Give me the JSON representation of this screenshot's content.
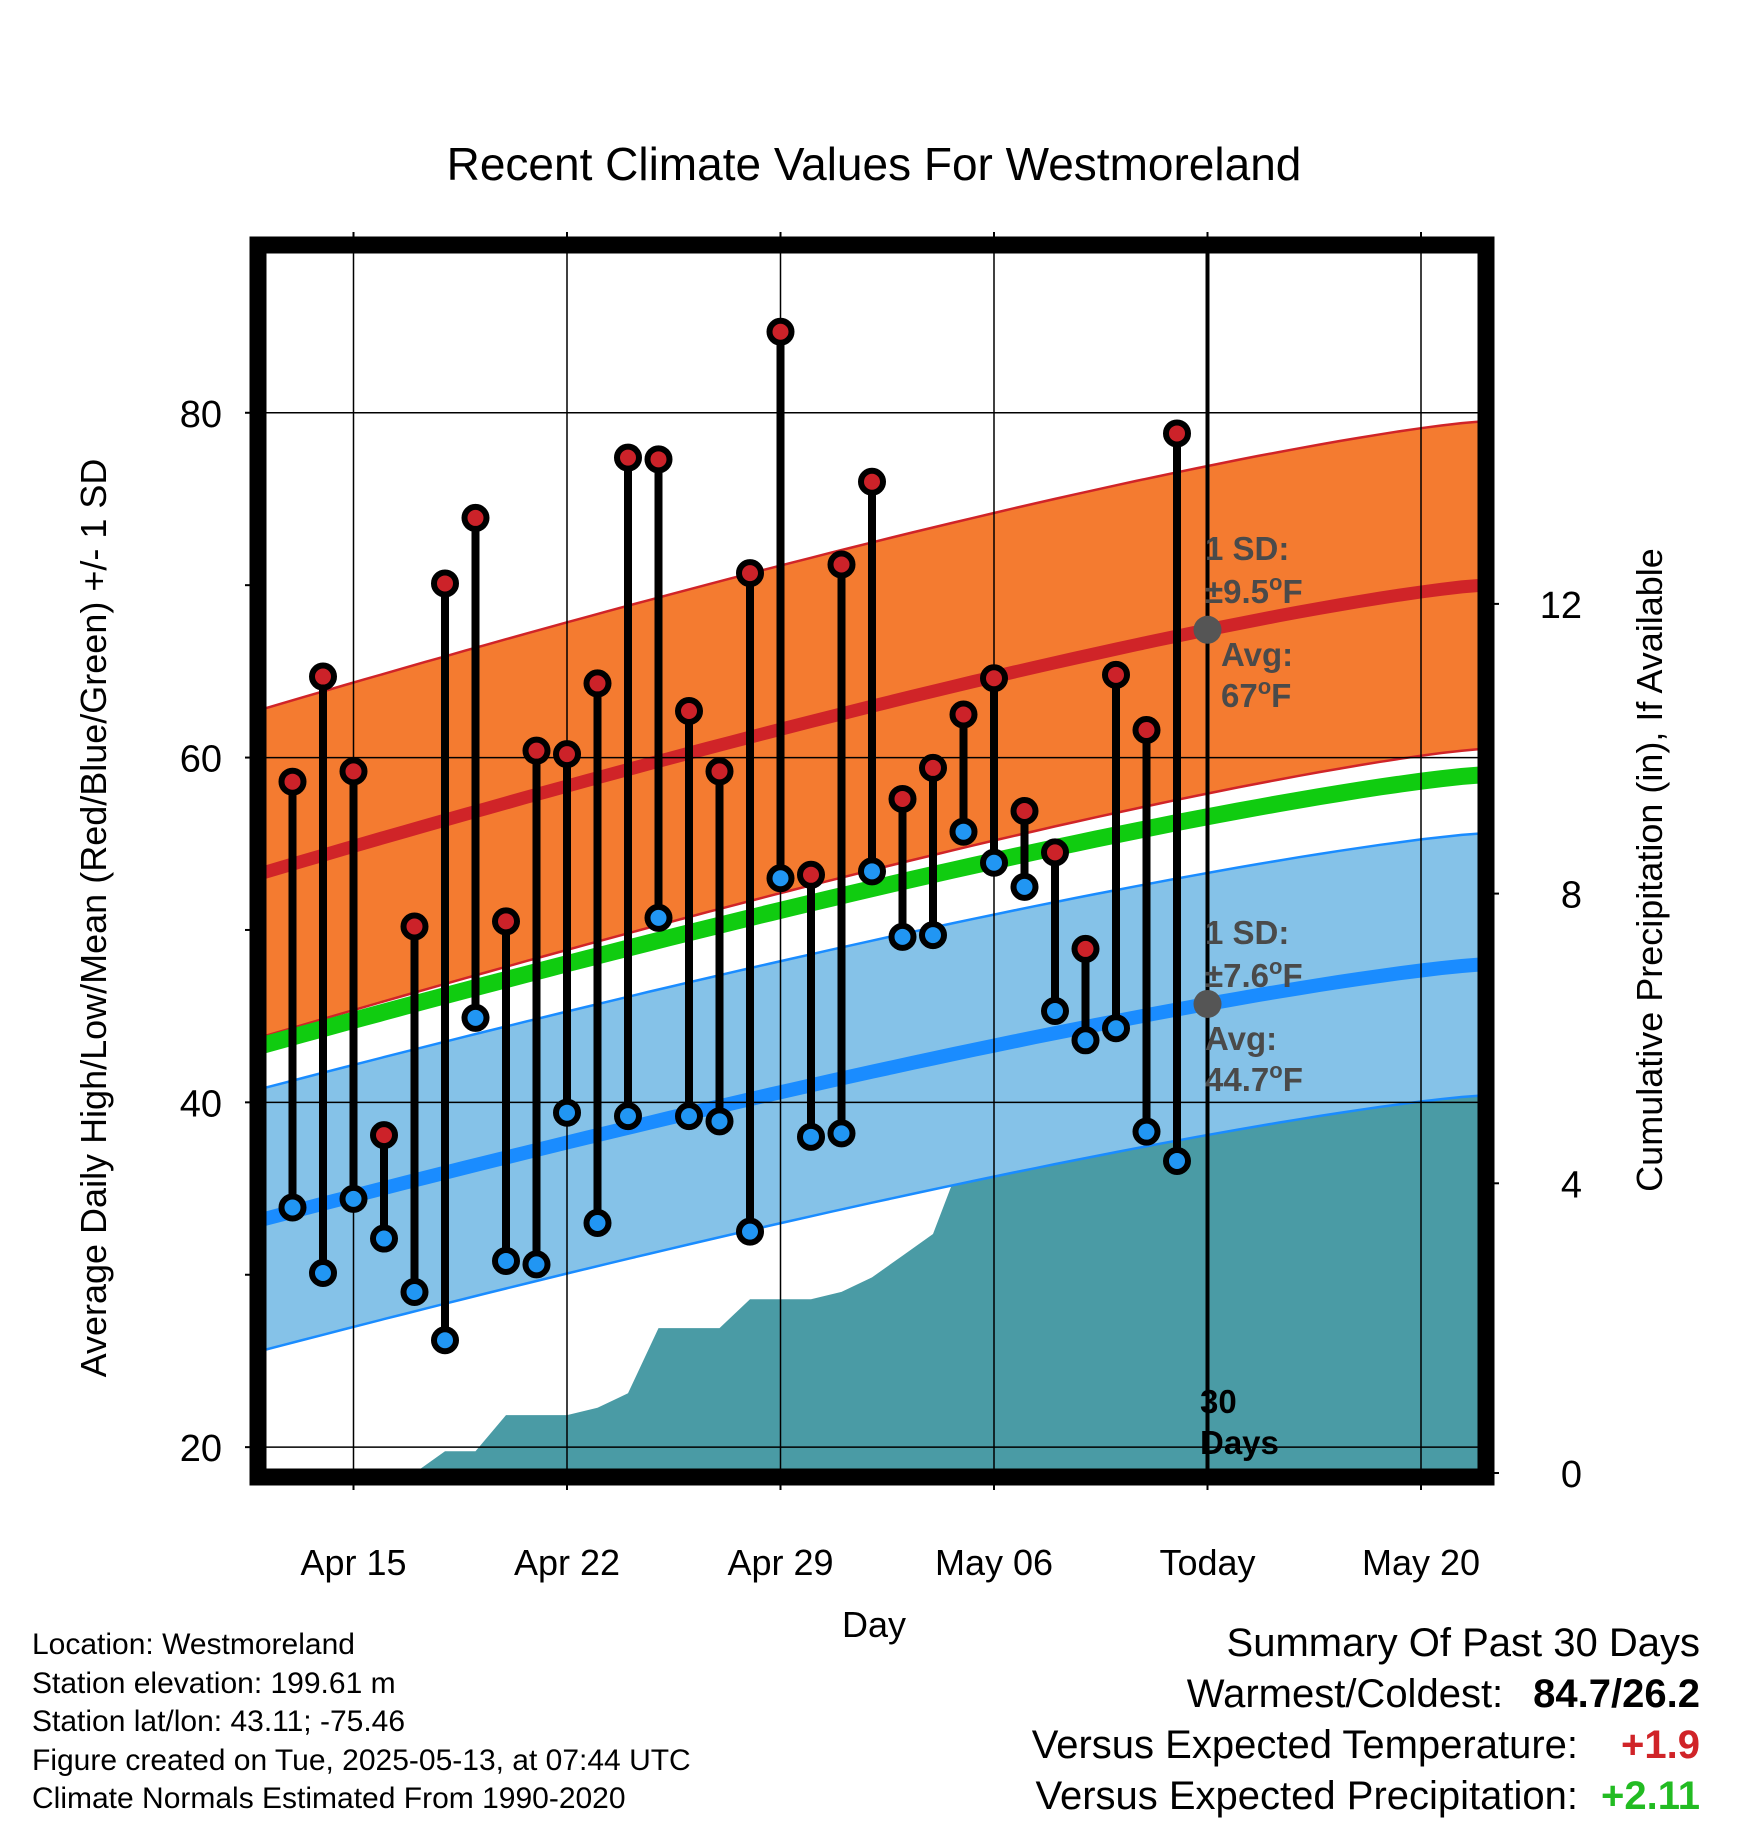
{
  "chart_data": {
    "type": "line",
    "title": "Recent Climate Values For Westmoreland",
    "xlabel": "Day",
    "ylabel": "Average Daily High/Low/Mean (Red/Blue/Green) +/- 1 SD",
    "y2label": "Cumulative Precipitation (in), If Available",
    "ylim": [
      18.5,
      89.5
    ],
    "y2lim": [
      0,
      16.9
    ],
    "yticks": [
      20,
      40,
      60,
      80
    ],
    "y2ticks": [
      0,
      4,
      8,
      12
    ],
    "xticks": [
      {
        "day": 3,
        "label": "Apr 15"
      },
      {
        "day": 10,
        "label": "Apr 22"
      },
      {
        "day": 17,
        "label": "Apr 29"
      },
      {
        "day": 24,
        "label": "May 06"
      },
      {
        "day": 31,
        "label": "Today"
      },
      {
        "day": 38,
        "label": "May 20"
      }
    ],
    "x_range": [
      0,
      40
    ],
    "grid": true,
    "highs": [
      58.6,
      64.7,
      59.2,
      38.1,
      50.2,
      70.1,
      73.9,
      50.5,
      60.4,
      60.2,
      64.3,
      77.4,
      77.3,
      62.7,
      59.2,
      70.7,
      84.7,
      53.2,
      71.2,
      76.0,
      57.6,
      59.4,
      62.5,
      64.6,
      56.9,
      54.5,
      48.9,
      64.8,
      61.6,
      78.8
    ],
    "lows": [
      33.9,
      30.1,
      34.4,
      32.1,
      29.0,
      26.2,
      44.9,
      30.8,
      30.6,
      39.4,
      33.0,
      39.2,
      50.7,
      39.2,
      38.9,
      32.5,
      53.0,
      38.0,
      38.2,
      53.4,
      49.6,
      49.7,
      55.7,
      53.9,
      52.5,
      45.3,
      43.6,
      44.3,
      38.3,
      36.6
    ],
    "normals": {
      "high_start": 53.3,
      "high_end": 70.0,
      "low_start": 33.2,
      "low_end": 48.0,
      "mean_start": 43.3,
      "mean_end": 59.0,
      "high_sd": 9.5,
      "low_sd": 7.6
    },
    "precip_cumulative": [
      0,
      0,
      0,
      0,
      0,
      0,
      0.3,
      0.3,
      0.8,
      0.8,
      0.8,
      0.9,
      1.1,
      2.0,
      2.0,
      2.0,
      2.4,
      2.4,
      2.4,
      2.5,
      2.7,
      3.0,
      3.3,
      4.4,
      4.7,
      4.7,
      5.5,
      5.6,
      5.6,
      5.6,
      5.6
    ],
    "precip_end": 5.6,
    "today_day": 31,
    "annotations": {
      "high_sd_line1": "1 SD:",
      "high_sd_line2": "±9.5",
      "high_avg_line1": "Avg:",
      "high_avg_line2": "67",
      "low_sd_line1": "1 SD:",
      "low_sd_line2": "±7.6",
      "low_avg_line1": "Avg:",
      "low_avg_line2": "44.7",
      "degree": "o",
      "unit": "F",
      "days_line1": "30",
      "days_line2": "Days"
    },
    "colors": {
      "high_band": "#f47b30",
      "high_line": "#d02428",
      "low_band": "#85c2e8",
      "low_line": "#1a8cff",
      "mean_line": "#10cc10",
      "precip": "#4a9ba5",
      "high_dot": "#cc2229",
      "low_dot": "#2196f3"
    }
  },
  "footer": {
    "location": "Location: Westmoreland",
    "elevation": "Station elevation: 199.61 m",
    "latlon": "Station lat/lon: 43.11; -75.46",
    "created": "Figure created on Tue, 2025-05-13, at 07:44 UTC",
    "normals": "Climate Normals Estimated From 1990-2020"
  },
  "summary": {
    "heading": "Summary Of Past 30 Days",
    "warm_cold_label": "Warmest/Coldest:",
    "warm_cold_value": "84.7/26.2",
    "temp_label": "Versus Expected Temperature:",
    "temp_value": "+1.9",
    "temp_color": "#d02428",
    "precip_label": "Versus Expected Precipitation:",
    "precip_value": "+2.11",
    "precip_color": "#22bb22"
  }
}
